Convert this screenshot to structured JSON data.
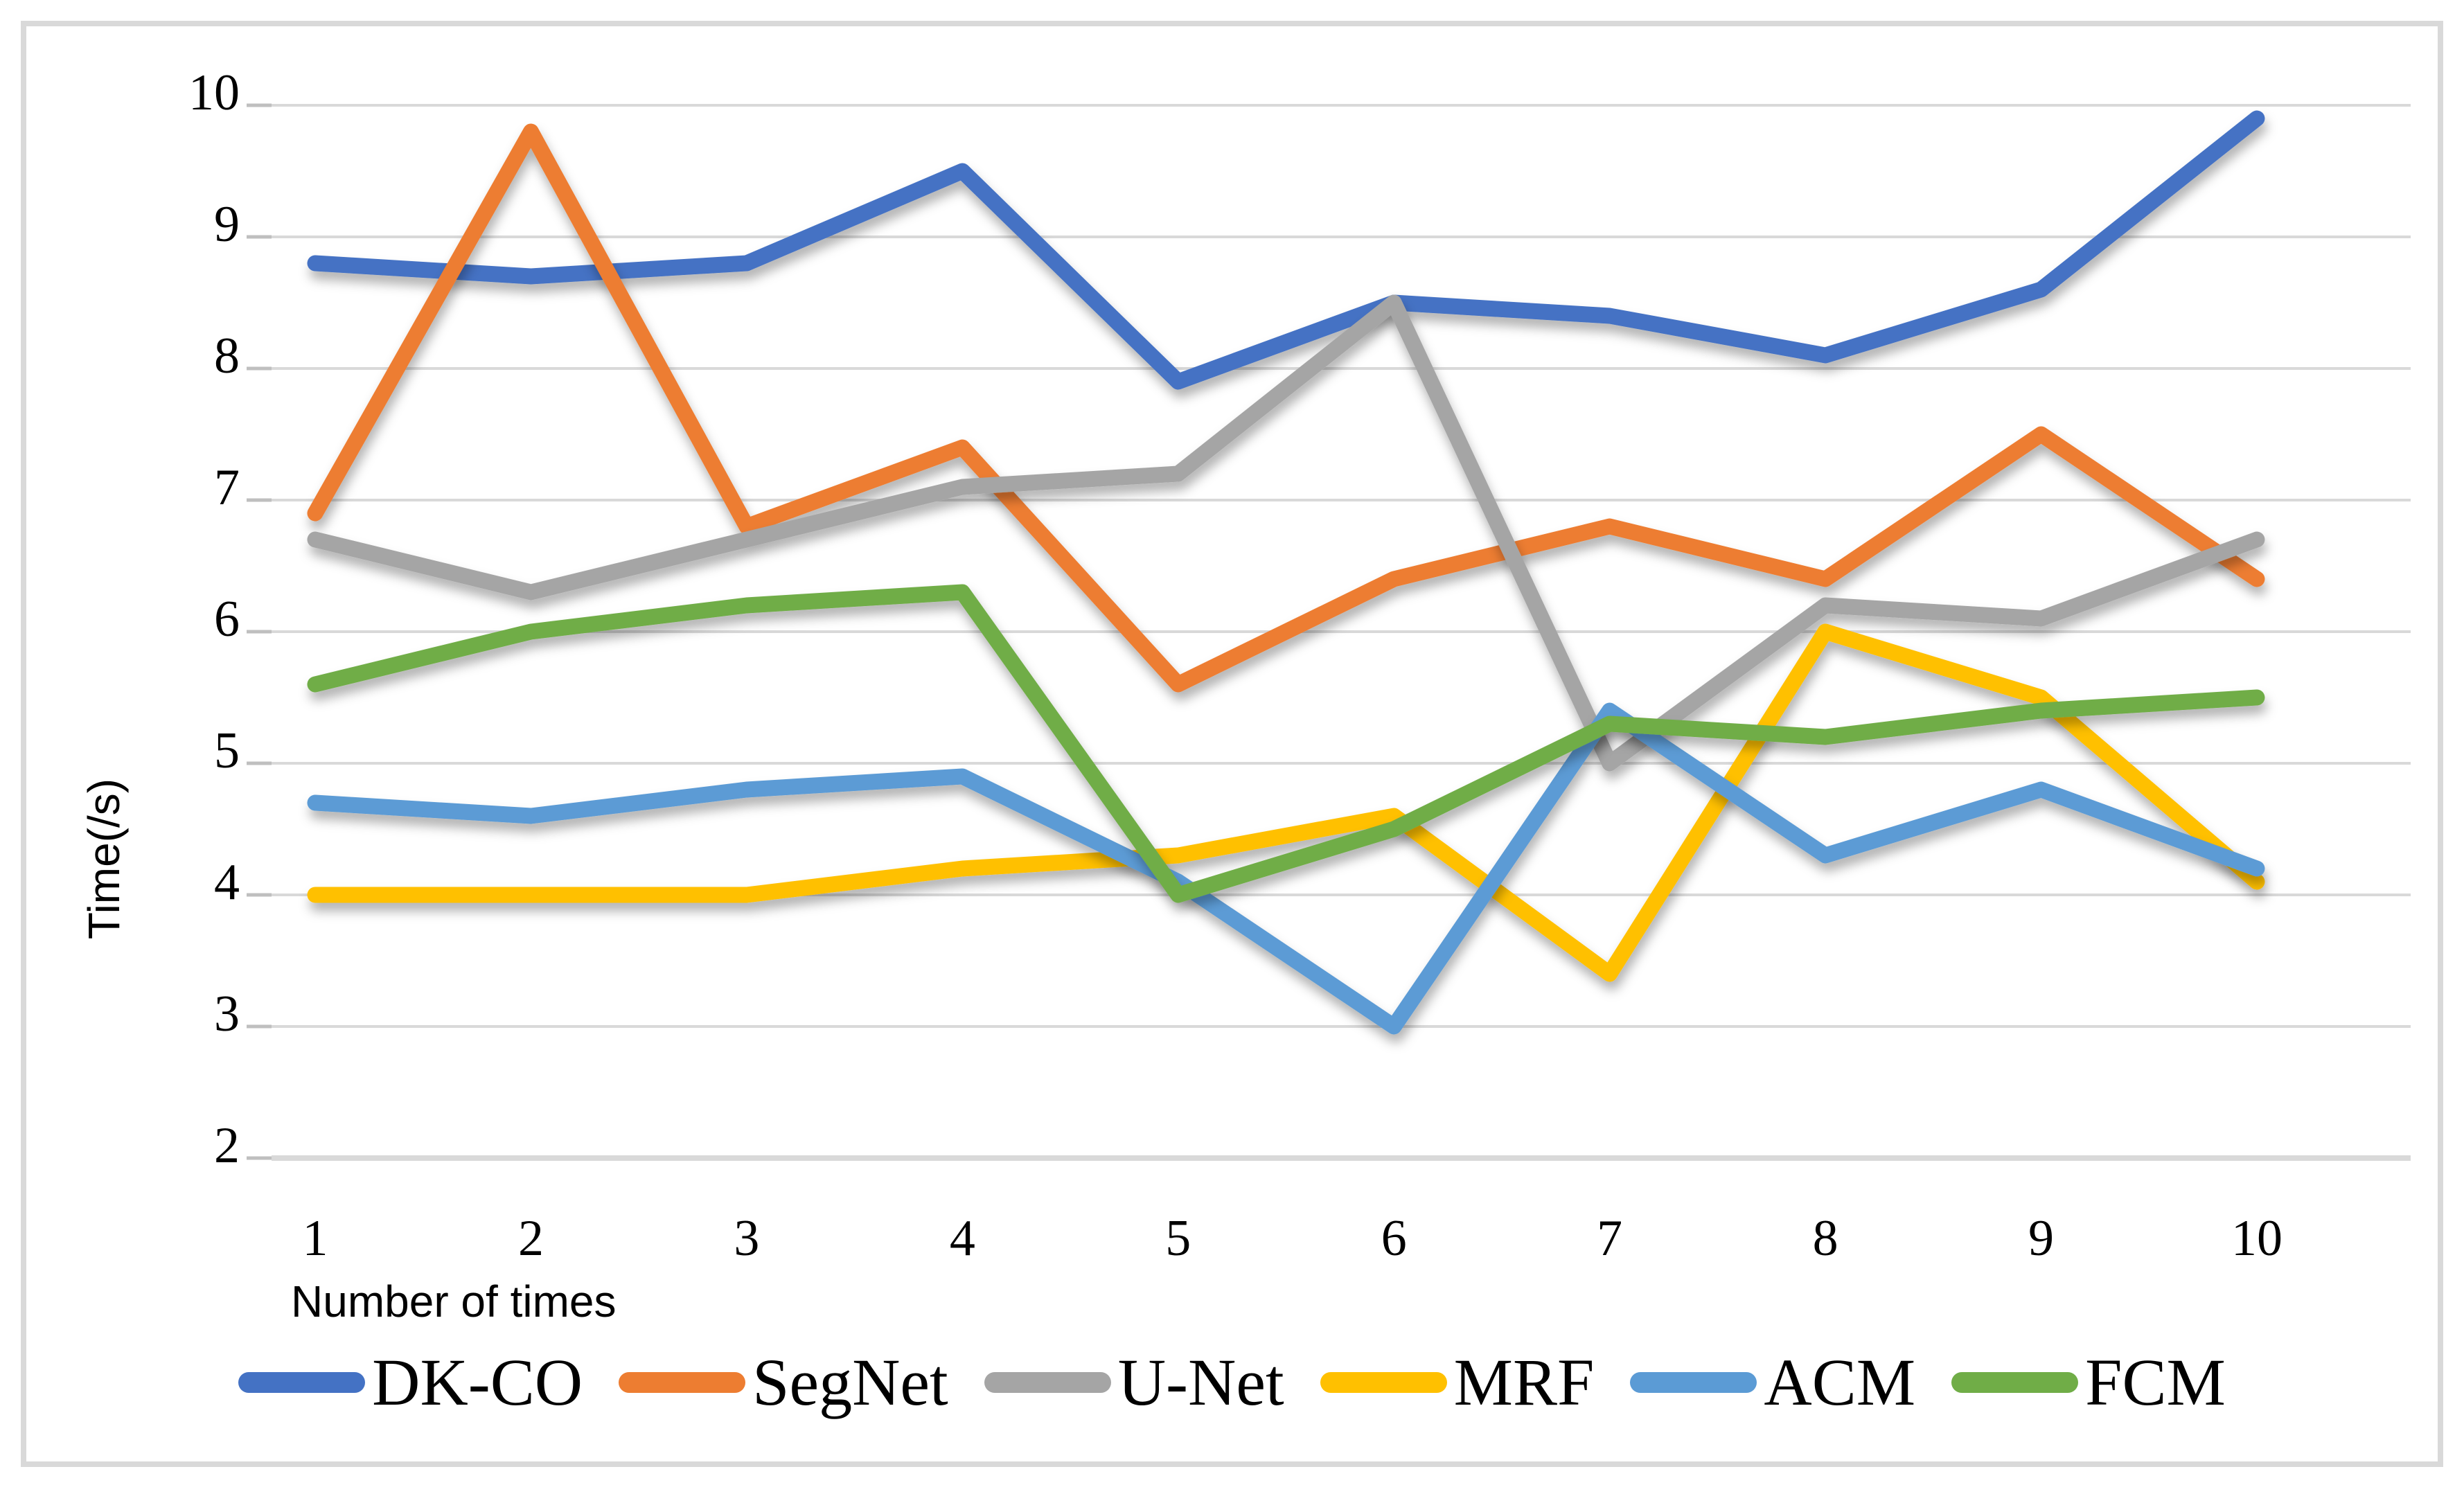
{
  "chart_data": {
    "type": "line",
    "title": "",
    "x": [
      1,
      2,
      3,
      4,
      5,
      6,
      7,
      8,
      9,
      10
    ],
    "xlabel": "Number of times",
    "ylabel": "Time(/s)",
    "ylim": [
      2,
      10
    ],
    "y_ticks": [
      2,
      3,
      4,
      5,
      6,
      7,
      8,
      9,
      10
    ],
    "grid": true,
    "legend_position": "bottom",
    "series": [
      {
        "name": "DK-CO",
        "color": "#4472C4",
        "values": [
          8.8,
          8.7,
          8.8,
          9.5,
          7.9,
          8.5,
          8.4,
          8.1,
          8.6,
          9.9
        ]
      },
      {
        "name": "SegNet",
        "color": "#ED7D31",
        "values": [
          6.9,
          9.8,
          6.8,
          7.4,
          5.6,
          6.4,
          6.8,
          6.4,
          7.5,
          6.4
        ]
      },
      {
        "name": "U-Net",
        "color": "#A5A5A5",
        "values": [
          6.7,
          6.3,
          6.7,
          7.1,
          7.2,
          8.5,
          5.0,
          6.2,
          6.1,
          6.7
        ]
      },
      {
        "name": "MRF",
        "color": "#FFC000",
        "values": [
          4.0,
          4.0,
          4.0,
          4.2,
          4.3,
          4.6,
          3.4,
          6.0,
          5.5,
          4.1
        ]
      },
      {
        "name": "ACM",
        "color": "#5B9BD5",
        "values": [
          4.7,
          4.6,
          4.8,
          4.9,
          4.1,
          3.0,
          5.4,
          4.3,
          4.8,
          4.2
        ]
      },
      {
        "name": "FCM",
        "color": "#70AD47",
        "values": [
          5.6,
          6.0,
          6.2,
          6.3,
          4.0,
          4.5,
          5.3,
          5.2,
          5.4,
          5.5
        ]
      }
    ],
    "colors": {
      "gridline": "#D9D9D9",
      "axis_line": "#D6D6D6",
      "tick_mark": "#BFBFBF",
      "text": "#000000"
    }
  }
}
